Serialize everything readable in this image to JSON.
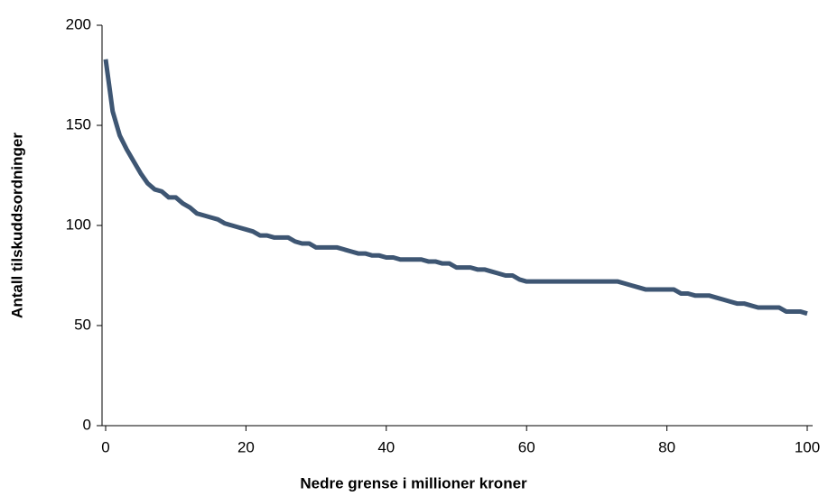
{
  "chart_data": {
    "type": "line",
    "x_label": "Nedre grense i millioner kroner",
    "y_label": "Antall tilskuddsordninger",
    "x": [
      0,
      1,
      2,
      3,
      4,
      5,
      6,
      7,
      8,
      9,
      10,
      11,
      12,
      13,
      14,
      15,
      16,
      17,
      18,
      19,
      20,
      21,
      22,
      23,
      24,
      25,
      26,
      27,
      28,
      29,
      30,
      31,
      32,
      33,
      34,
      35,
      36,
      37,
      38,
      39,
      40,
      41,
      42,
      43,
      44,
      45,
      46,
      47,
      48,
      49,
      50,
      51,
      52,
      53,
      54,
      55,
      56,
      57,
      58,
      59,
      60,
      61,
      62,
      63,
      64,
      65,
      66,
      67,
      68,
      69,
      70,
      71,
      72,
      73,
      74,
      75,
      76,
      77,
      78,
      79,
      80,
      81,
      82,
      83,
      84,
      85,
      86,
      87,
      88,
      89,
      90,
      91,
      92,
      93,
      94,
      95,
      96,
      97,
      98,
      99,
      100
    ],
    "series": [
      {
        "color": "#3e5673",
        "values": [
          183,
          157,
          145,
          138,
          132,
          126,
          121,
          118,
          117,
          114,
          114,
          111,
          109,
          106,
          105,
          104,
          103,
          101,
          100,
          99,
          98,
          97,
          95,
          95,
          94,
          94,
          94,
          92,
          91,
          91,
          89,
          89,
          89,
          89,
          88,
          87,
          86,
          86,
          85,
          85,
          84,
          84,
          83,
          83,
          83,
          83,
          82,
          82,
          81,
          81,
          79,
          79,
          79,
          78,
          78,
          77,
          76,
          75,
          75,
          73,
          72,
          72,
          72,
          72,
          72,
          72,
          72,
          72,
          72,
          72,
          72,
          72,
          72,
          72,
          71,
          70,
          69,
          68,
          68,
          68,
          68,
          68,
          66,
          66,
          65,
          65,
          65,
          64,
          63,
          62,
          61,
          61,
          60,
          59,
          59,
          59,
          59,
          57,
          57,
          57,
          56
        ]
      }
    ],
    "xlim": [
      0,
      100
    ],
    "ylim": [
      0,
      200
    ],
    "xticks": [
      0,
      20,
      40,
      60,
      80,
      100
    ],
    "yticks": [
      0,
      50,
      100,
      150,
      200
    ]
  }
}
